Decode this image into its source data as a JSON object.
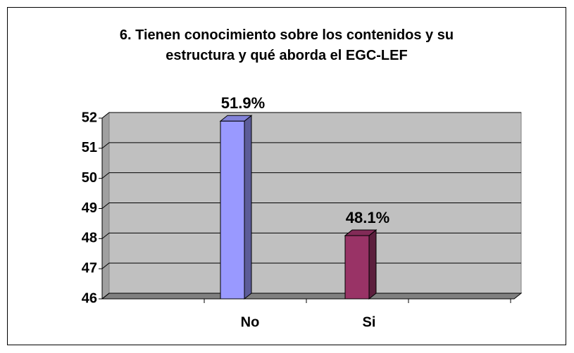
{
  "chart_data": {
    "type": "bar3d",
    "title": "6. Tienen conocimiento sobre los contenidos y su estructura y qué aborda el EGC-LEF",
    "categories": [
      "No",
      "Si"
    ],
    "values": [
      51.9,
      48.1
    ],
    "value_labels": [
      "51.9%",
      "48.1%"
    ],
    "colors": [
      "#9999ff",
      "#993366"
    ],
    "ylim": [
      46,
      52
    ],
    "yticks": [
      46,
      47,
      48,
      49,
      50,
      51,
      52
    ],
    "grid": true
  }
}
